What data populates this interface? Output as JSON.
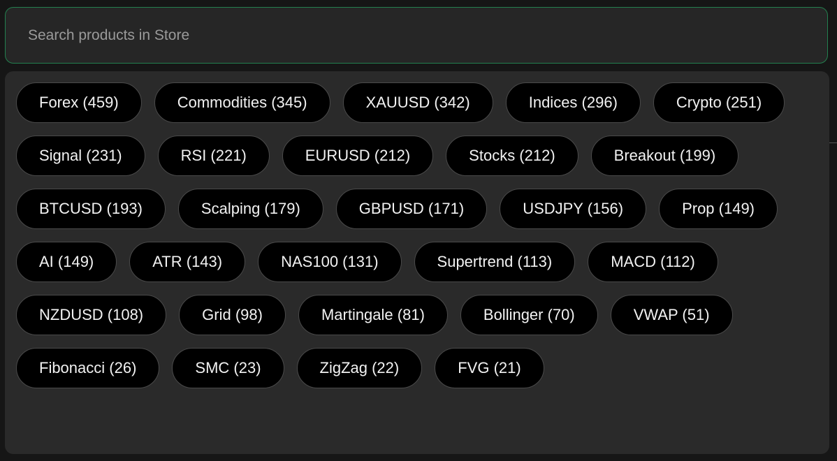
{
  "search": {
    "placeholder": "Search products in Store"
  },
  "tags": [
    "Forex (459)",
    "Commodities (345)",
    "XAUUSD (342)",
    "Indices (296)",
    "Crypto (251)",
    "Signal (231)",
    "RSI (221)",
    "EURUSD (212)",
    "Stocks (212)",
    "Breakout (199)",
    "BTCUSD (193)",
    "Scalping (179)",
    "GBPUSD (171)",
    "USDJPY (156)",
    "Prop (149)",
    "AI (149)",
    "ATR (143)",
    "NAS100 (131)",
    "Supertrend (113)",
    "MACD (112)",
    "NZDUSD (108)",
    "Grid (98)",
    "Martingale (81)",
    "Bollinger (70)",
    "VWAP (51)",
    "Fibonacci (26)",
    "SMC (23)",
    "ZigZag (22)",
    "FVG (21)"
  ]
}
